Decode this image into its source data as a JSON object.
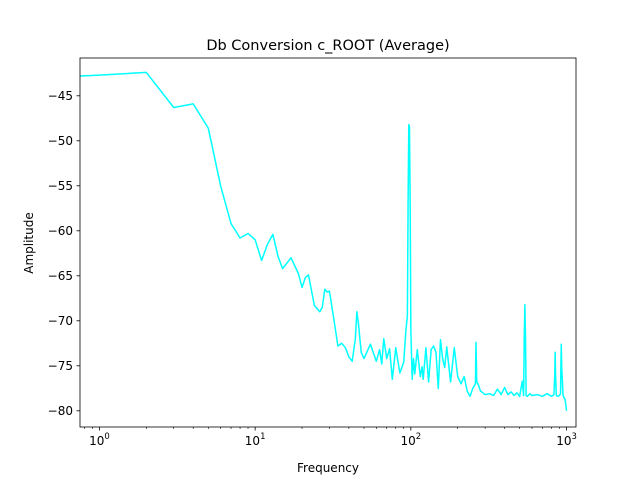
{
  "chart_data": {
    "type": "line",
    "title": "Db Conversion c_ROOT (Average)",
    "xlabel": "Frequency",
    "ylabel": "Amplitude",
    "xscale": "log",
    "xlim": [
      0.75,
      1150
    ],
    "ylim": [
      -81.8,
      -40.8
    ],
    "grid": false,
    "line_color": "#00ffff",
    "x_ticks": [
      {
        "value": 1,
        "base": "10",
        "exp": "0"
      },
      {
        "value": 10,
        "base": "10",
        "exp": "1"
      },
      {
        "value": 100,
        "base": "10",
        "exp": "2"
      },
      {
        "value": 1000,
        "base": "10",
        "exp": "3"
      }
    ],
    "y_ticks": [
      {
        "value": -45,
        "label": "−45"
      },
      {
        "value": -50,
        "label": "−50"
      },
      {
        "value": -55,
        "label": "−55"
      },
      {
        "value": -60,
        "label": "−60"
      },
      {
        "value": -65,
        "label": "−65"
      },
      {
        "value": -70,
        "label": "−70"
      },
      {
        "value": -75,
        "label": "−75"
      },
      {
        "value": -80,
        "label": "−80"
      }
    ],
    "series": [
      {
        "x": [
          0.75,
          1,
          2,
          3,
          4,
          5,
          6,
          7,
          8,
          9,
          10,
          11,
          12,
          13,
          14,
          15,
          17,
          19,
          20,
          21,
          22,
          24,
          26,
          27,
          28,
          29,
          30,
          32,
          34,
          36,
          38,
          40,
          42,
          44,
          45,
          46,
          48,
          50,
          55,
          60,
          63,
          65,
          67,
          70,
          73,
          76,
          80,
          85,
          90,
          93,
          95,
          96,
          97,
          98,
          99,
          100,
          101,
          102,
          104,
          106,
          110,
          115,
          118,
          120,
          125,
          130,
          135,
          140,
          145,
          150,
          155,
          160,
          165,
          170,
          180,
          190,
          200,
          210,
          220,
          230,
          240,
          250,
          260,
          262,
          265,
          270,
          280,
          290,
          300,
          320,
          340,
          360,
          380,
          400,
          420,
          440,
          460,
          480,
          500,
          510,
          520,
          530,
          535,
          540,
          545,
          550,
          560,
          580,
          600,
          650,
          700,
          750,
          800,
          830,
          840,
          845,
          850,
          860,
          880,
          900,
          915,
          920,
          925,
          930,
          950,
          980,
          1000
        ],
        "y": [
          -42.8,
          -42.7,
          -42.4,
          -46.3,
          -45.9,
          -48.6,
          -55.0,
          -59.2,
          -60.8,
          -60.3,
          -61.0,
          -63.3,
          -61.5,
          -60.4,
          -62.8,
          -64.2,
          -63.0,
          -64.8,
          -66.3,
          -65.2,
          -64.9,
          -68.3,
          -69.0,
          -68.5,
          -66.5,
          -66.8,
          -66.7,
          -69.8,
          -72.8,
          -72.5,
          -73.0,
          -74.0,
          -74.5,
          -72.0,
          -69.0,
          -70.2,
          -73.5,
          -74.2,
          -72.6,
          -74.5,
          -73.2,
          -74.8,
          -72.0,
          -74.2,
          -73.1,
          -76.5,
          -73.0,
          -75.8,
          -74.6,
          -71.0,
          -69.5,
          -57.0,
          -48.2,
          -48.5,
          -57.0,
          -71.0,
          -73.8,
          -76.5,
          -74.2,
          -75.9,
          -73.2,
          -76.2,
          -75.1,
          -76.5,
          -73.0,
          -76.8,
          -73.2,
          -72.8,
          -73.5,
          -77.5,
          -72.1,
          -74.2,
          -75.2,
          -72.9,
          -76.8,
          -73.0,
          -76.2,
          -77.0,
          -76.2,
          -77.8,
          -78.4,
          -77.5,
          -77.0,
          -72.4,
          -76.8,
          -77.0,
          -77.8,
          -78.0,
          -78.2,
          -78.1,
          -78.3,
          -77.6,
          -78.2,
          -77.4,
          -78.2,
          -77.9,
          -78.3,
          -78.0,
          -78.4,
          -77.5,
          -76.7,
          -78.3,
          -72.0,
          -68.2,
          -72.0,
          -78.3,
          -78.4,
          -78.1,
          -78.3,
          -78.2,
          -78.4,
          -78.1,
          -78.4,
          -78.2,
          -76.0,
          -73.5,
          -76.0,
          -78.3,
          -78.4,
          -78.3,
          -78.1,
          -75.0,
          -72.6,
          -75.0,
          -78.3,
          -78.8,
          -80.0
        ]
      }
    ]
  }
}
